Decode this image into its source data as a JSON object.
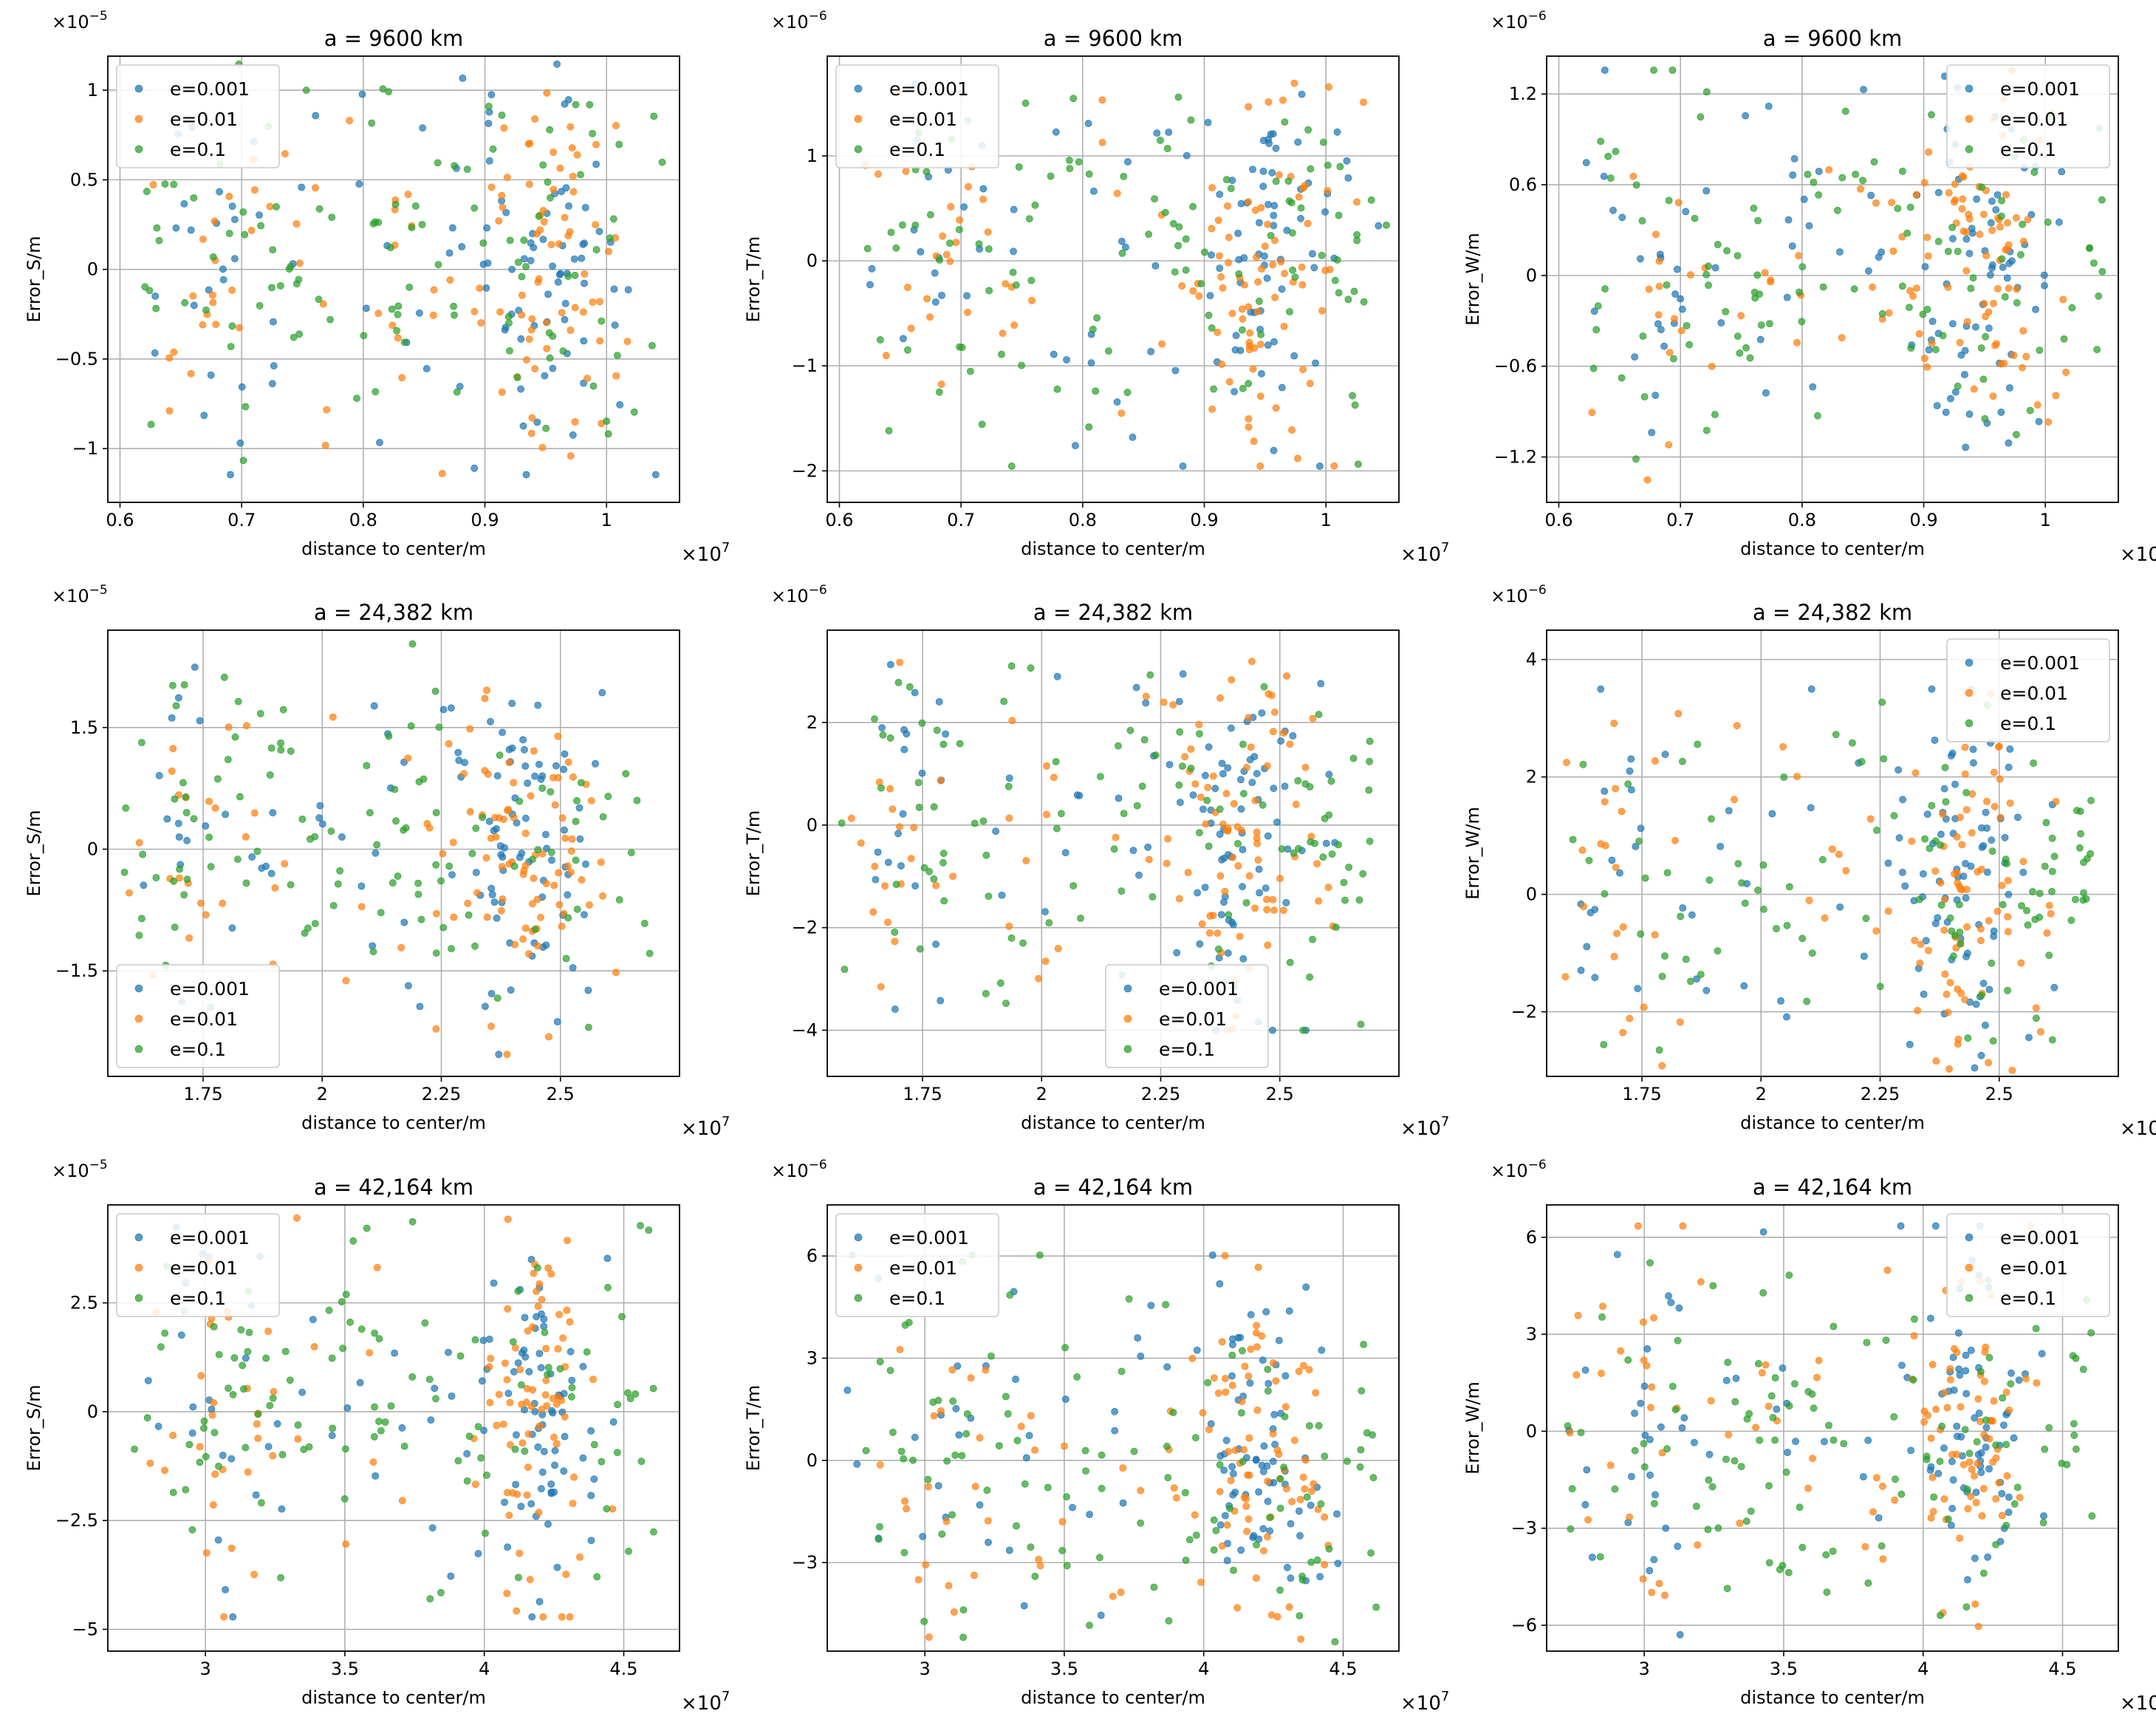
{
  "figure": {
    "legend_entries": [
      "e=0.001",
      "e=0.01",
      "e=0.1"
    ],
    "series_colors": [
      "#1f77b4",
      "#ff7f0e",
      "#2ca02c"
    ],
    "xlabel": "distance to center/m",
    "x_multiplier": "×10",
    "x_exponent": "7"
  },
  "chart_data": [
    {
      "type": "scatter",
      "title": "a = 9600 km",
      "ylabel": "Error_S/m",
      "y_multiplier": "×10",
      "y_exponent": "−5",
      "xlim": [
        0.59,
        1.06
      ],
      "ylim": [
        -1.3,
        1.19
      ],
      "xticks": [
        0.6,
        0.7,
        0.8,
        0.9,
        1.0
      ],
      "xtick_labels": [
        "0.6",
        "0.7",
        "0.8",
        "0.9",
        "1"
      ],
      "yticks": [
        -1,
        -0.5,
        0,
        0.5,
        1
      ],
      "ytick_labels": [
        "−1",
        "−0.5",
        "0",
        "0.5",
        "1"
      ],
      "legend_position": "upper-left",
      "x_center": [
        0.68,
        0.95
      ],
      "x_spread": [
        0.02,
        0.03
      ],
      "extent": [
        0.62,
        1.05
      ]
    },
    {
      "type": "scatter",
      "title": "a = 9600 km",
      "ylabel": "Error_T/m",
      "y_multiplier": "×10",
      "y_exponent": "−6",
      "xlim": [
        0.59,
        1.06
      ],
      "ylim": [
        -2.3,
        1.95
      ],
      "xticks": [
        0.6,
        0.7,
        0.8,
        0.9,
        1.0
      ],
      "xtick_labels": [
        "0.6",
        "0.7",
        "0.8",
        "0.9",
        "1"
      ],
      "yticks": [
        -2,
        -1,
        0,
        1
      ],
      "ytick_labels": [
        "−2",
        "−1",
        "0",
        "1"
      ],
      "legend_position": "upper-left",
      "x_center": [
        0.68,
        0.95
      ],
      "x_spread": [
        0.02,
        0.03
      ],
      "extent": [
        0.62,
        1.05
      ]
    },
    {
      "type": "scatter",
      "title": "a = 9600 km",
      "ylabel": "Error_W/m",
      "y_multiplier": "×10",
      "y_exponent": "−6",
      "xlim": [
        0.59,
        1.06
      ],
      "ylim": [
        -1.5,
        1.45
      ],
      "xticks": [
        0.6,
        0.7,
        0.8,
        0.9,
        1.0
      ],
      "xtick_labels": [
        "0.6",
        "0.7",
        "0.8",
        "0.9",
        "1"
      ],
      "yticks": [
        -1.2,
        -0.6,
        0,
        0.6,
        1.2
      ],
      "ytick_labels": [
        "−1.2",
        "−0.6",
        "0",
        "0.6",
        "1.2"
      ],
      "legend_position": "upper-right",
      "x_center": [
        0.68,
        0.95
      ],
      "x_spread": [
        0.02,
        0.03
      ],
      "extent": [
        0.62,
        1.05
      ]
    },
    {
      "type": "scatter",
      "title": "a = 24,382 km",
      "ylabel": "Error_S/m",
      "y_multiplier": "×10",
      "y_exponent": "−5",
      "xlim": [
        1.55,
        2.75
      ],
      "ylim": [
        -2.8,
        2.7
      ],
      "xticks": [
        1.75,
        2.0,
        2.25,
        2.5
      ],
      "xtick_labels": [
        "1.75",
        "2",
        "2.25",
        "2.5"
      ],
      "yticks": [
        -1.5,
        0,
        1.5
      ],
      "ytick_labels": [
        "−1.5",
        "0",
        "1.5"
      ],
      "legend_position": "lower-left",
      "x_center": [
        1.72,
        2.42
      ],
      "x_spread": [
        0.05,
        0.07
      ],
      "extent": [
        1.58,
        2.7
      ]
    },
    {
      "type": "scatter",
      "title": "a = 24,382 km",
      "ylabel": "Error_T/m",
      "y_multiplier": "×10",
      "y_exponent": "−6",
      "xlim": [
        1.55,
        2.75
      ],
      "ylim": [
        -4.9,
        3.8
      ],
      "xticks": [
        1.75,
        2.0,
        2.25,
        2.5
      ],
      "xtick_labels": [
        "1.75",
        "2",
        "2.25",
        "2.5"
      ],
      "yticks": [
        -4,
        -2,
        0,
        2
      ],
      "ytick_labels": [
        "−4",
        "−2",
        "0",
        "2"
      ],
      "legend_position": "lower-center",
      "x_center": [
        1.72,
        2.42
      ],
      "x_spread": [
        0.05,
        0.07
      ],
      "extent": [
        1.58,
        2.7
      ]
    },
    {
      "type": "scatter",
      "title": "a = 24,382 km",
      "ylabel": "Error_W/m",
      "y_multiplier": "×10",
      "y_exponent": "−6",
      "xlim": [
        1.55,
        2.75
      ],
      "ylim": [
        -3.1,
        4.5
      ],
      "xticks": [
        1.75,
        2.0,
        2.25,
        2.5
      ],
      "xtick_labels": [
        "1.75",
        "2",
        "2.25",
        "2.5"
      ],
      "yticks": [
        -2,
        0,
        2,
        4
      ],
      "ytick_labels": [
        "−2",
        "0",
        "2",
        "4"
      ],
      "legend_position": "upper-right",
      "x_center": [
        1.72,
        2.42
      ],
      "x_spread": [
        0.05,
        0.07
      ],
      "extent": [
        1.58,
        2.7
      ]
    },
    {
      "type": "scatter",
      "title": "a = 42,164 km",
      "ylabel": "Error_S/m",
      "y_multiplier": "×10",
      "y_exponent": "−5",
      "xlim": [
        2.65,
        4.7
      ],
      "ylim": [
        -5.5,
        4.75
      ],
      "xticks": [
        3.0,
        3.5,
        4.0,
        4.5
      ],
      "xtick_labels": [
        "3",
        "3.5",
        "4",
        "4.5"
      ],
      "yticks": [
        -5,
        -2.5,
        0,
        2.5
      ],
      "ytick_labels": [
        "−5",
        "−2.5",
        "0",
        "2.5"
      ],
      "legend_position": "upper-left",
      "x_center": [
        3.05,
        4.18
      ],
      "x_spread": [
        0.08,
        0.1
      ],
      "extent": [
        2.72,
        4.62
      ]
    },
    {
      "type": "scatter",
      "title": "a = 42,164 km",
      "ylabel": "Error_T/m",
      "y_multiplier": "×10",
      "y_exponent": "−6",
      "xlim": [
        2.65,
        4.7
      ],
      "ylim": [
        -5.6,
        7.5
      ],
      "xticks": [
        3.0,
        3.5,
        4.0,
        4.5
      ],
      "xtick_labels": [
        "3",
        "3.5",
        "4",
        "4.5"
      ],
      "yticks": [
        -3,
        0,
        3,
        6
      ],
      "ytick_labels": [
        "−3",
        "0",
        "3",
        "6"
      ],
      "legend_position": "upper-left",
      "x_center": [
        3.05,
        4.18
      ],
      "x_spread": [
        0.08,
        0.1
      ],
      "extent": [
        2.72,
        4.62
      ]
    },
    {
      "type": "scatter",
      "title": "a = 42,164 km",
      "ylabel": "Error_W/m",
      "y_multiplier": "×10",
      "y_exponent": "−6",
      "xlim": [
        2.65,
        4.7
      ],
      "ylim": [
        -6.8,
        7.0
      ],
      "xticks": [
        3.0,
        3.5,
        4.0,
        4.5
      ],
      "xtick_labels": [
        "3",
        "3.5",
        "4",
        "4.5"
      ],
      "yticks": [
        -6,
        -3,
        0,
        3,
        6
      ],
      "ytick_labels": [
        "−6",
        "−3",
        "0",
        "3",
        "6"
      ],
      "legend_position": "upper-right",
      "x_center": [
        3.05,
        4.18
      ],
      "x_spread": [
        0.08,
        0.1
      ],
      "extent": [
        2.72,
        4.62
      ]
    }
  ]
}
